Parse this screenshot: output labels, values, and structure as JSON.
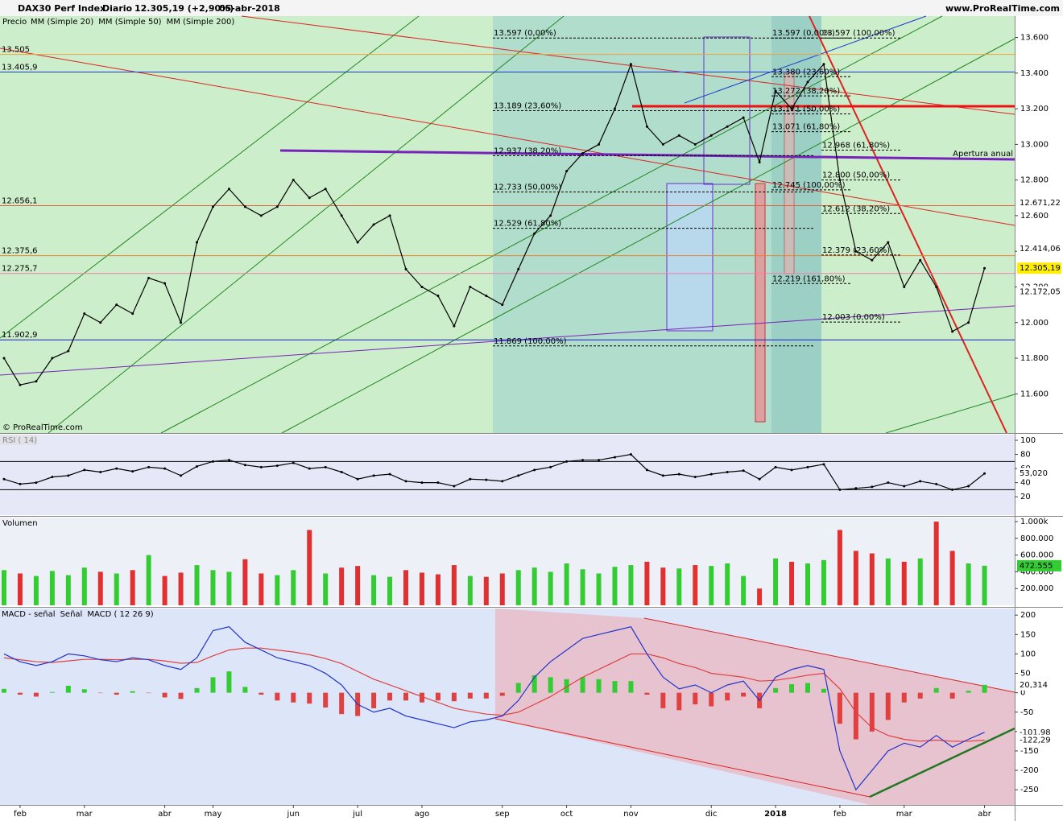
{
  "header": {
    "instrument": "DAX30 Perf Index",
    "period": "Diario",
    "last": "12.305,19 (+2,90%)",
    "date": "05-abr-2018",
    "site": "www.ProRealTime.com",
    "watermark": "© ProRealTime.com",
    "annotation": "Apertura anual"
  },
  "chart_data": [
    {
      "type": "line",
      "ylim": [
        11380,
        13720
      ],
      "yticks": [
        {
          "value": 11600,
          "label": "11.600"
        },
        {
          "value": 11800,
          "label": "11.800"
        },
        {
          "value": 12000,
          "label": "12.000"
        },
        {
          "value": 12200,
          "label": "12.200"
        },
        {
          "value": 12400,
          "label": "12.400"
        },
        {
          "value": 12600,
          "label": "12.600"
        },
        {
          "value": 12800,
          "label": "12.800"
        },
        {
          "value": 13000,
          "label": "13.000"
        },
        {
          "value": 13200,
          "label": "13.200"
        },
        {
          "value": 13400,
          "label": "13.400"
        },
        {
          "value": 13600,
          "label": "13.600"
        }
      ],
      "series": [
        {
          "name": "Precio",
          "color": "#000000",
          "last_label": "12.305,19",
          "values": [
            11800,
            11650,
            11670,
            11800,
            11840,
            12050,
            12000,
            12100,
            12050,
            12250,
            12220,
            12000,
            12450,
            12650,
            12750,
            12650,
            12600,
            12650,
            12800,
            12700,
            12750,
            12600,
            12450,
            12550,
            12600,
            12300,
            12200,
            12150,
            11980,
            12200,
            12150,
            12100,
            12300,
            12500,
            12600,
            12850,
            12950,
            13000,
            13200,
            13450,
            13100,
            13000,
            13050,
            13000,
            13050,
            13100,
            13150,
            12900,
            13300,
            13200,
            13350,
            13450,
            12800,
            12400,
            12350,
            12450,
            12200,
            12350,
            12200,
            11950,
            12000,
            12305.19
          ]
        }
      ],
      "indicators": [
        {
          "name": "MM (Simple 20)",
          "color": "#f0b0b0"
        },
        {
          "name": "MM (Simple 50)",
          "color": "#22aa22"
        },
        {
          "name": "MM (Simple 200)",
          "color": "#dd3333"
        }
      ],
      "levels": [
        {
          "value": 13505,
          "label": "13.505",
          "color": "#f0a040"
        },
        {
          "value": 13405.9,
          "label": "13.405,9",
          "color": "#1a3acc"
        },
        {
          "value": 12656.1,
          "label": "12.656,1",
          "color": "#e06040"
        },
        {
          "value": 12375.6,
          "label": "12.375,6",
          "color": "#f08030"
        },
        {
          "value": 12275.7,
          "label": "12.275,7",
          "color": "#f080b0"
        },
        {
          "value": 11902.9,
          "label": "11.902,9",
          "color": "#1a1acc"
        }
      ],
      "fib_sets": [
        [
          {
            "value": 13597,
            "label": "13.597 (0,00%)"
          },
          {
            "value": 13189,
            "label": "13.189 (23,60%)"
          },
          {
            "value": 12937,
            "label": "12.937 (38,20%)"
          },
          {
            "value": 12733,
            "label": "12.733 (50,00%)"
          },
          {
            "value": 12529,
            "label": "12.529 (61,80%)"
          },
          {
            "value": 11869,
            "label": "11.869 (100,00%)"
          }
        ],
        [
          {
            "value": 13597,
            "label": "13.597 (0,00%)"
          },
          {
            "value": 13380,
            "label": "13.380 (23,60%)"
          },
          {
            "value": 13272,
            "label": "13.272 (38,20%)"
          },
          {
            "value": 13171,
            "label": "13.171 (50,00%)"
          },
          {
            "value": 13071,
            "label": "13.071 (61,80%)"
          },
          {
            "value": 12745,
            "label": "12.745 (100,00%)"
          },
          {
            "value": 12219,
            "label": "12.219 (161,80%)"
          }
        ],
        [
          {
            "value": 13597,
            "label": "13.597 (100,00%)"
          },
          {
            "value": 12968,
            "label": "12.968 (61,80%)"
          },
          {
            "value": 12800,
            "label": "12.800 (50,00%)"
          },
          {
            "value": 12612,
            "label": "12.612 (38,20%)"
          },
          {
            "value": 12379,
            "label": "12.379 (23,60%)"
          },
          {
            "value": 12003,
            "label": "12.003 (0,00%)"
          }
        ]
      ],
      "price_boxes": [
        {
          "value": 12671.22,
          "label": "12.671,22",
          "color": "#f080a0"
        },
        {
          "value": 12414.06,
          "label": "12.414,06",
          "color": "#22aa22"
        },
        {
          "value": 12172.05,
          "label": "12.172,05",
          "color": "#f080a0"
        }
      ]
    },
    {
      "type": "line",
      "title": "RSI ( 14)",
      "ylim": [
        -6,
        108
      ],
      "yticks": [
        20,
        40,
        60,
        80,
        100
      ],
      "series": [
        {
          "name": "RSI",
          "color": "#000000",
          "last_label": "53,020",
          "values": [
            45,
            38,
            40,
            48,
            50,
            58,
            55,
            60,
            56,
            62,
            60,
            50,
            63,
            70,
            72,
            65,
            62,
            64,
            68,
            60,
            62,
            55,
            45,
            50,
            52,
            42,
            40,
            40,
            35,
            45,
            44,
            42,
            50,
            58,
            62,
            70,
            72,
            72,
            76,
            80,
            58,
            50,
            52,
            48,
            52,
            55,
            57,
            45,
            62,
            58,
            62,
            66,
            30,
            32,
            34,
            40,
            35,
            42,
            38,
            30,
            35,
            53.02
          ]
        }
      ]
    },
    {
      "type": "bar",
      "title": "Volumen",
      "ylim": [
        0,
        1048000
      ],
      "up_color": "#33cc33",
      "down_color": "#e03030",
      "yticks": [
        {
          "value": 200000,
          "label": "200.000"
        },
        {
          "value": 400000,
          "label": "400.000"
        },
        {
          "value": 600000,
          "label": "600.000"
        },
        {
          "value": 800000,
          "label": "800.000"
        },
        {
          "value": 1000000,
          "label": "1.000k"
        }
      ],
      "last_label": "472.555",
      "values": [
        420000,
        380000,
        350000,
        410000,
        360000,
        450000,
        400000,
        380000,
        420000,
        600000,
        350000,
        390000,
        480000,
        420000,
        400000,
        550000,
        380000,
        360000,
        420000,
        900000,
        380000,
        450000,
        470000,
        360000,
        340000,
        420000,
        390000,
        370000,
        480000,
        350000,
        340000,
        380000,
        420000,
        450000,
        400000,
        500000,
        430000,
        380000,
        460000,
        480000,
        520000,
        450000,
        440000,
        480000,
        470000,
        500000,
        350000,
        200000,
        560000,
        520000,
        500000,
        540000,
        900000,
        650000,
        620000,
        560000,
        520000,
        560000,
        1000000,
        650000,
        500000,
        472555
      ]
    },
    {
      "type": "macd",
      "ylim": [
        -289,
        217
      ],
      "yticks": [
        -250,
        -200,
        -150,
        -100,
        -50,
        0,
        50,
        100,
        150,
        200
      ],
      "categories": [
        null,
        "feb",
        null,
        null,
        null,
        "mar",
        null,
        null,
        null,
        null,
        "abr",
        null,
        null,
        "may",
        null,
        null,
        null,
        null,
        "jun",
        null,
        null,
        null,
        "jul",
        null,
        null,
        null,
        "ago",
        null,
        null,
        null,
        null,
        "sep",
        null,
        null,
        null,
        "oct",
        null,
        null,
        null,
        "nov",
        null,
        null,
        null,
        null,
        "dic",
        null,
        null,
        null,
        "2018",
        null,
        null,
        null,
        "feb",
        null,
        null,
        null,
        "mar",
        null,
        null,
        null,
        null,
        "abr"
      ],
      "series": [
        {
          "name": "MACD - señal",
          "color": "#33cc33",
          "negative_color": "#e04040",
          "last_label": "20,314",
          "values": [
            10,
            -5,
            -10,
            2,
            18,
            9,
            -1,
            -5,
            4,
            -1,
            -12,
            -16,
            12,
            40,
            55,
            15,
            -5,
            -20,
            -25,
            -28,
            -38,
            -55,
            -60,
            -40,
            -20,
            -20,
            -25,
            -20,
            -22,
            -15,
            -15,
            -8,
            25,
            45,
            40,
            35,
            40,
            35,
            30,
            30,
            -5,
            -40,
            -45,
            -30,
            -35,
            -20,
            -10,
            -40,
            12,
            22,
            25,
            10,
            -80,
            -120,
            -100,
            -70,
            -25,
            -15,
            12,
            -15,
            5,
            20.314
          ]
        },
        {
          "name": "Señal",
          "color": "#e04040",
          "last_label": "-122,29",
          "values": [
            90,
            85,
            80,
            78,
            82,
            86,
            86,
            85,
            86,
            86,
            82,
            76,
            78,
            95,
            110,
            115,
            115,
            110,
            105,
            98,
            88,
            75,
            55,
            35,
            20,
            5,
            -10,
            -25,
            -40,
            -48,
            -55,
            -58,
            -50,
            -30,
            -10,
            15,
            40,
            60,
            80,
            100,
            100,
            90,
            75,
            65,
            50,
            45,
            40,
            30,
            32,
            38,
            45,
            50,
            10,
            -50,
            -90,
            -110,
            -120,
            -125,
            -122,
            -125,
            -125,
            -122.29
          ]
        },
        {
          "name": "MACD ( 12 26 9)",
          "color": "#2233cc",
          "last_label": "-101,98",
          "values": [
            100,
            80,
            70,
            80,
            100,
            95,
            85,
            80,
            90,
            85,
            70,
            60,
            90,
            160,
            170,
            130,
            110,
            90,
            80,
            70,
            50,
            20,
            -30,
            -50,
            -40,
            -60,
            -70,
            -80,
            -90,
            -75,
            -70,
            -60,
            -20,
            40,
            80,
            110,
            140,
            150,
            160,
            170,
            100,
            40,
            10,
            20,
            0,
            20,
            30,
            -20,
            40,
            60,
            70,
            60,
            -150,
            -250,
            -200,
            -150,
            -130,
            -140,
            -110,
            -140,
            -120,
            -101.98
          ]
        }
      ]
    }
  ]
}
